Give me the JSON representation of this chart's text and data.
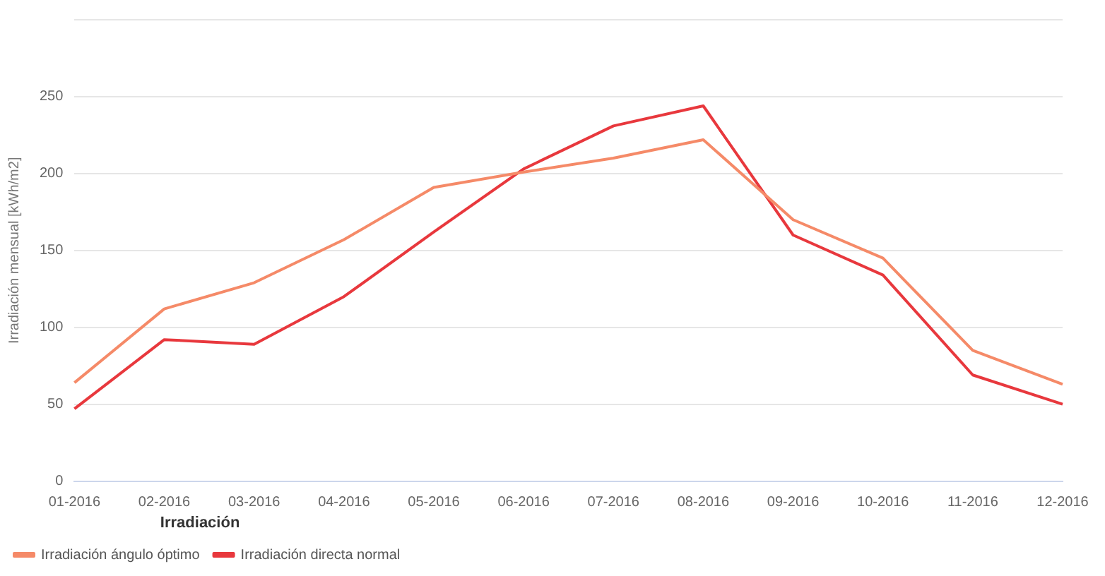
{
  "chart_data": {
    "type": "line",
    "ylabel": "Irradiación mensual [kWh/m2]",
    "legend_title": "Irradiación",
    "categories": [
      "01-2016",
      "02-2016",
      "03-2016",
      "04-2016",
      "05-2016",
      "06-2016",
      "07-2016",
      "08-2016",
      "09-2016",
      "10-2016",
      "11-2016",
      "12-2016"
    ],
    "series": [
      {
        "name": "Irradiación ángulo óptimo",
        "color": "#f58a68",
        "values": [
          64,
          112,
          129,
          157,
          191,
          201,
          210,
          222,
          170,
          145,
          85,
          63
        ]
      },
      {
        "name": "Irradiación directa normal",
        "color": "#e8383d",
        "values": [
          47,
          92,
          89,
          120,
          162,
          203,
          231,
          244,
          160,
          134,
          69,
          50
        ]
      }
    ],
    "ylim": [
      0,
      300
    ],
    "yticks": [
      0,
      50,
      100,
      150,
      200,
      250,
      {
        "value": 300,
        "label": null
      }
    ],
    "grid": "y",
    "legend": "bottom",
    "marker": "none",
    "line_style": "solid"
  }
}
